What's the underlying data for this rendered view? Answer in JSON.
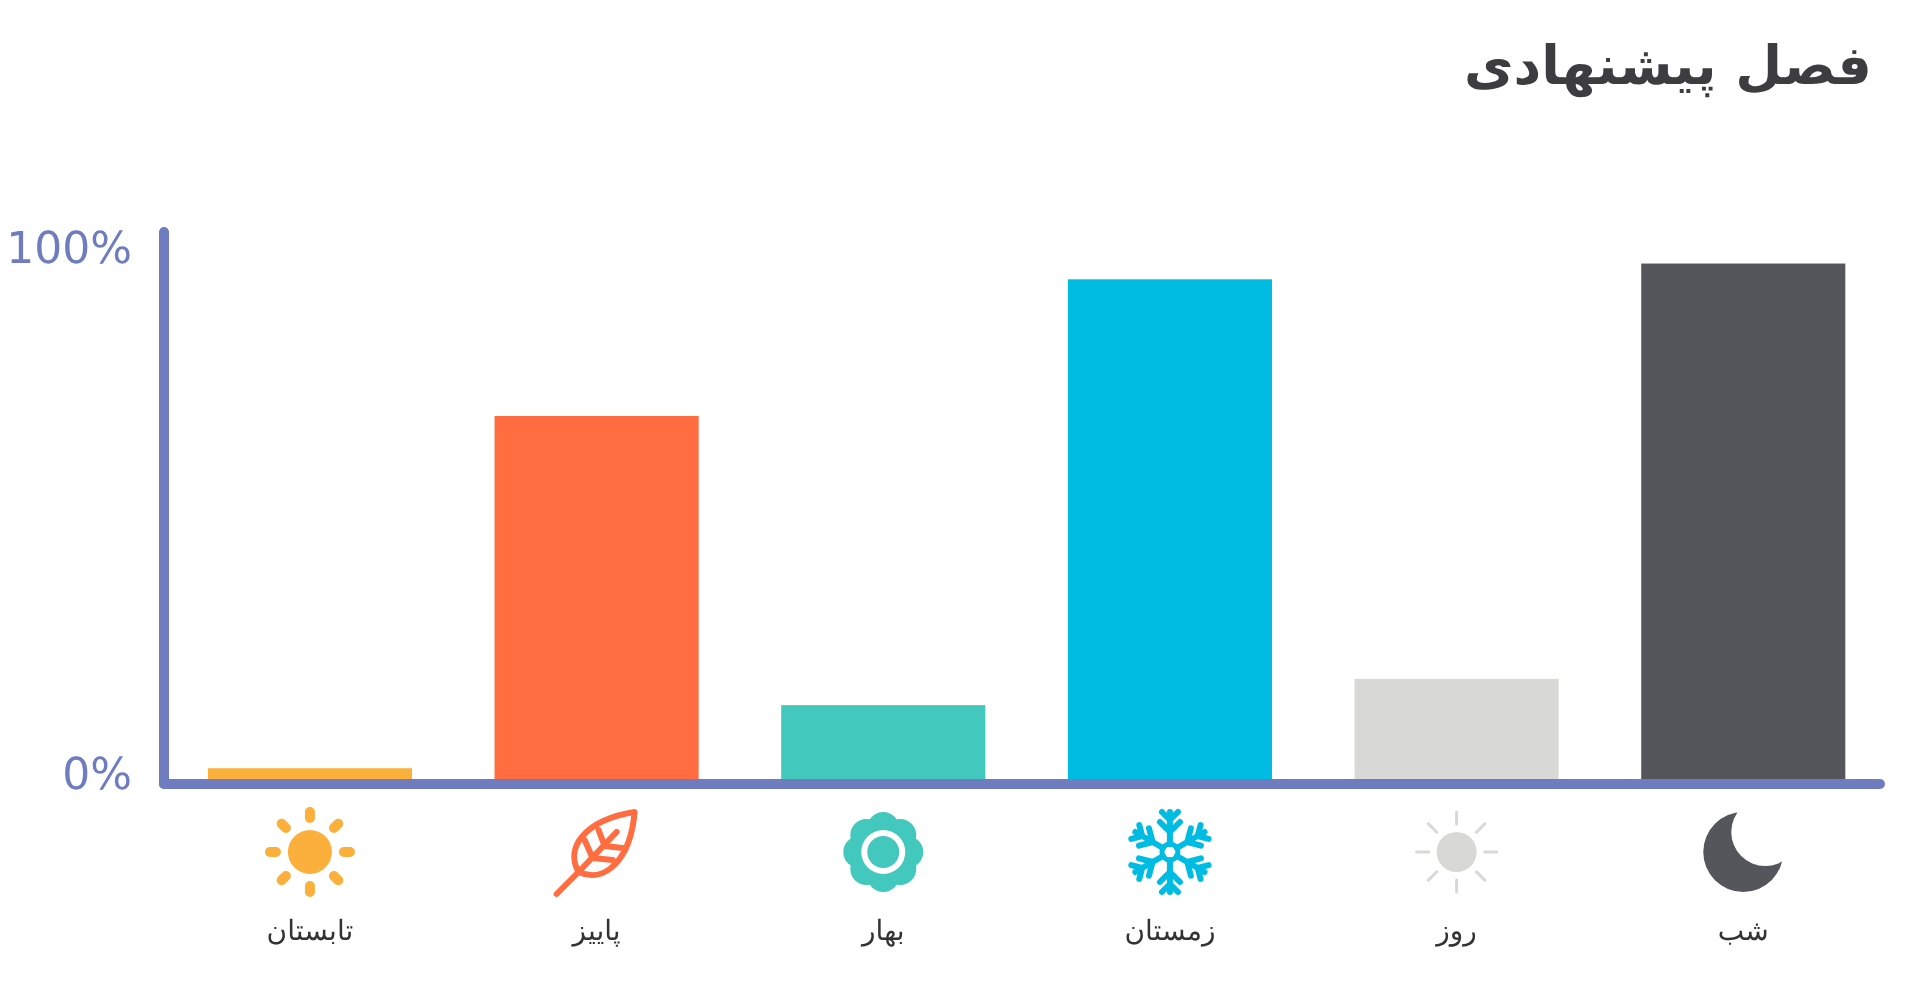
{
  "chart_data": {
    "type": "bar",
    "title": "فصل پیشنهادی",
    "categories": [
      "تابستان",
      "پاییز",
      "بهار",
      "زمستان",
      "روز",
      "شب"
    ],
    "values": [
      3,
      70,
      15,
      96,
      20,
      99
    ],
    "colors": [
      "#fbb03b",
      "#ff6d40",
      "#42c8bc",
      "#00bce3",
      "#d8d8d6",
      "#54565b"
    ],
    "ylim": [
      0,
      105
    ],
    "yticks": [
      {
        "value": 0,
        "label": "0%"
      },
      {
        "value": 100,
        "label": "100%"
      }
    ]
  }
}
